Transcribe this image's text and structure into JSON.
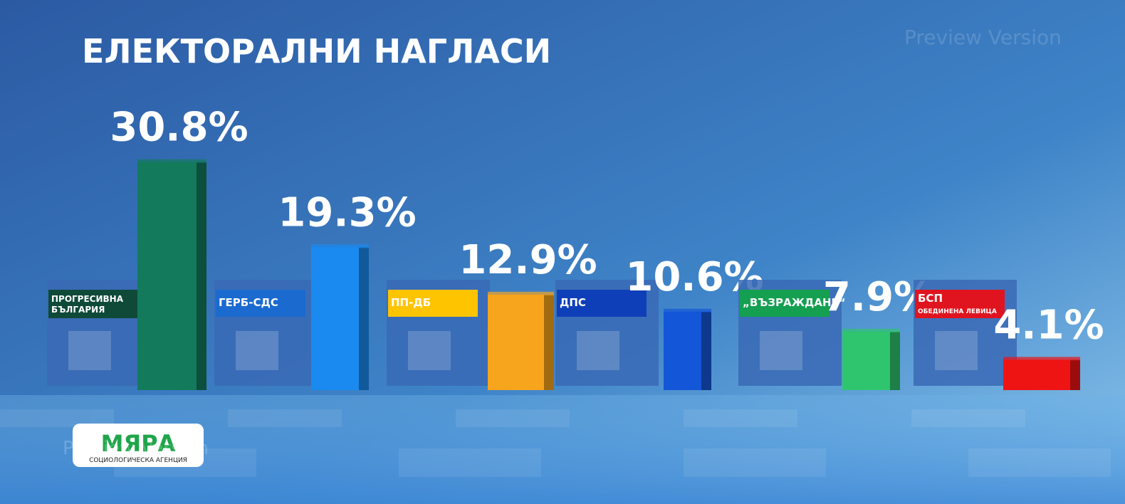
{
  "chart_data": {
    "type": "bar",
    "title": "ЕЛЕКТОРАЛНИ НАГЛАСИ",
    "categories": [
      "ПРОГРЕСИВНА БЪЛГАРИЯ",
      "ГЕРБ-СДС",
      "ПП-ДБ",
      "ДПС",
      "„ВЪЗРАЖДАНЕ“",
      "БСП"
    ],
    "category_sublabels": [
      null,
      null,
      null,
      null,
      null,
      "ОБЕДИНЕНА ЛЕВИЦА"
    ],
    "values": [
      30.8,
      19.3,
      12.9,
      10.6,
      7.9,
      4.1
    ],
    "value_labels": [
      "30.8%",
      "19.3%",
      "12.9%",
      "10.6%",
      "7.9%",
      "4.1%"
    ],
    "colors": [
      "#137a5c",
      "#1a8af0",
      "#f7a51c",
      "#1456d8",
      "#2fc46e",
      "#ee1414"
    ],
    "label_colors": [
      "#0f4a38",
      "#1a6ad0",
      "#ffc400",
      "#0f3fb8",
      "#14a050",
      "#e0141e"
    ],
    "source": "МЯРА",
    "source_subtitle": "СОЦИОЛОГИЧЕСКА АГЕНЦИЯ",
    "watermark": "Preview Version"
  }
}
